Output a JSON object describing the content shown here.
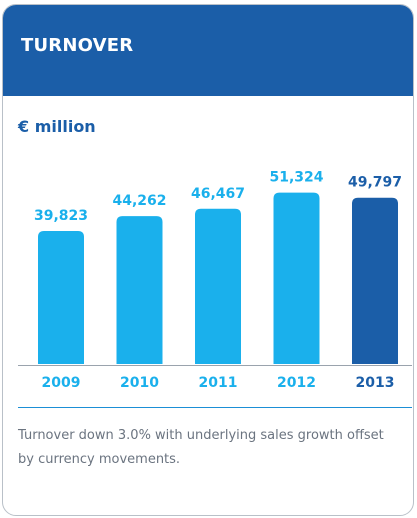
{
  "card": {
    "title": "TURNOVER"
  },
  "colors": {
    "header": "#1b5ea8",
    "bar": "#1ab0ec",
    "bar_highlight": "#1b5ea8",
    "divider": "#1b8fd6"
  },
  "chart_data": {
    "type": "bar",
    "title": "TURNOVER",
    "ylabel": "€ million",
    "categories": [
      "2009",
      "2010",
      "2011",
      "2012",
      "2013"
    ],
    "values": [
      39823,
      44262,
      46467,
      51324,
      49797
    ],
    "value_labels": [
      "39,823",
      "44,262",
      "46,467",
      "51,324",
      "49,797"
    ],
    "highlight_category": "2013",
    "grid": false,
    "legend": "none"
  },
  "footnote": "Turnover down 3.0% with underlying sales growth offset by currency movements."
}
